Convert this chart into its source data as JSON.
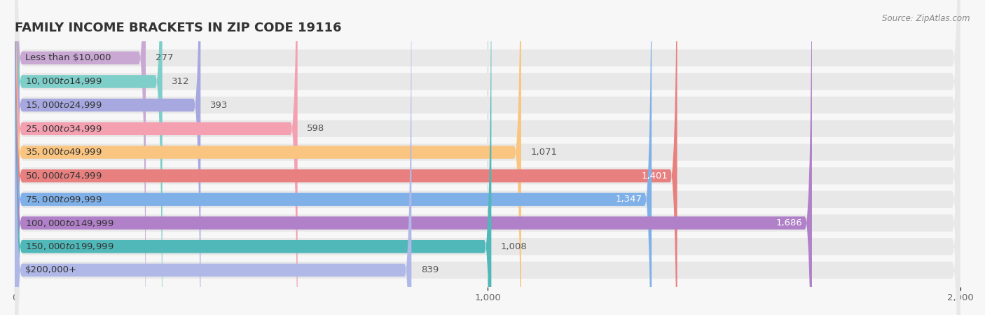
{
  "title": "FAMILY INCOME BRACKETS IN ZIP CODE 19116",
  "source": "Source: ZipAtlas.com",
  "categories": [
    "Less than $10,000",
    "$10,000 to $14,999",
    "$15,000 to $24,999",
    "$25,000 to $34,999",
    "$35,000 to $49,999",
    "$50,000 to $74,999",
    "$75,000 to $99,999",
    "$100,000 to $149,999",
    "$150,000 to $199,999",
    "$200,000+"
  ],
  "values": [
    277,
    312,
    393,
    598,
    1071,
    1401,
    1347,
    1686,
    1008,
    839
  ],
  "bar_colors": [
    "#c9a8d4",
    "#7ececa",
    "#a8a8e0",
    "#f4a0b0",
    "#f9c580",
    "#e88080",
    "#80b0e8",
    "#b080c8",
    "#50b8b8",
    "#b0b8e8"
  ],
  "xlim": [
    0,
    2000
  ],
  "xticks": [
    0,
    1000,
    2000
  ],
  "background_color": "#f7f7f7",
  "bar_background_color": "#e8e8e8",
  "title_fontsize": 13,
  "label_fontsize": 9.5,
  "value_fontsize": 9.5
}
